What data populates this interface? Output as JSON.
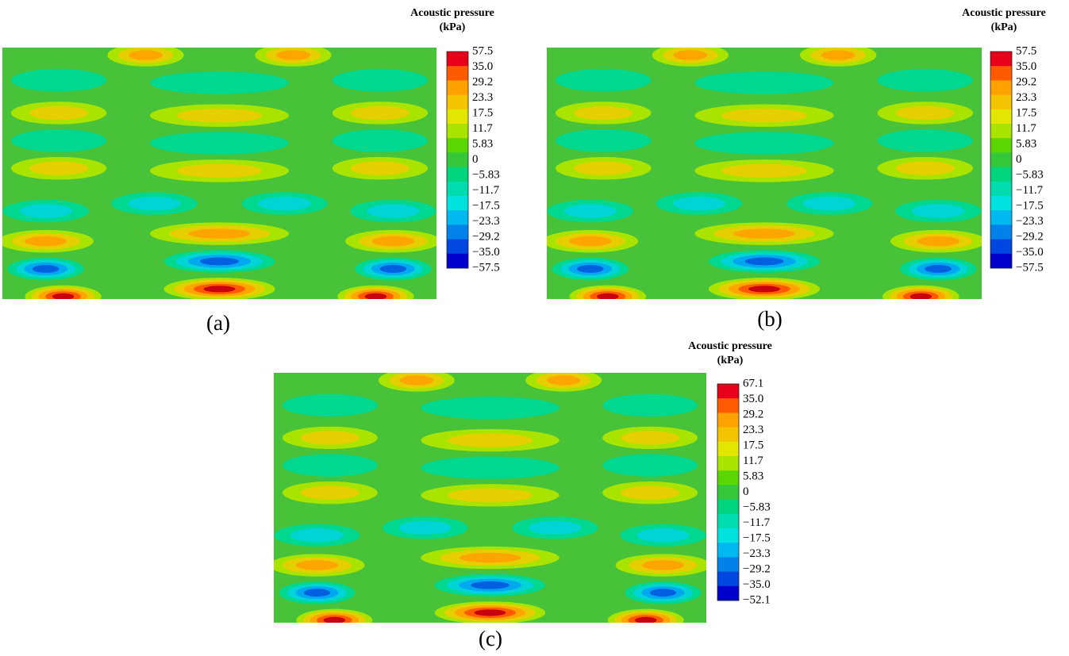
{
  "colormap": [
    "#e8001a",
    "#ff5a00",
    "#ffa200",
    "#f5c400",
    "#e2e600",
    "#a8e400",
    "#5ad600",
    "#34c83a",
    "#00d47c",
    "#00dcb0",
    "#00e2e0",
    "#00b8f0",
    "#0082ea",
    "#0046e0",
    "#0000cc"
  ],
  "panels": [
    {
      "legend": {
        "title": "Acoustic pressure",
        "unit": "(kPa)",
        "labels": [
          "57.5",
          "35.0",
          "29.2",
          "23.3",
          "17.5",
          "11.7",
          "5.83",
          "0",
          "−5.83",
          "−11.7",
          "−17.5",
          "−23.3",
          "−29.2",
          "−35.0",
          "−57.5"
        ]
      },
      "caption": "(a)"
    },
    {
      "legend": {
        "title": "Acoustic pressure",
        "unit": "(kPa)",
        "labels": [
          "57.5",
          "35.0",
          "29.2",
          "23.3",
          "17.5",
          "11.7",
          "5.83",
          "0",
          "−5.83",
          "−11.7",
          "−17.5",
          "−23.3",
          "−29.2",
          "−35.0",
          "−57.5"
        ]
      },
      "caption": "(b)"
    },
    {
      "legend": {
        "title": "Acoustic pressure",
        "unit": "(kPa)",
        "labels": [
          "67.1",
          "35.0",
          "29.2",
          "23.3",
          "17.5",
          "11.7",
          "5.83",
          "0",
          "−5.83",
          "−11.7",
          "−17.5",
          "−23.3",
          "−29.2",
          "−35.0",
          "−52.1"
        ]
      },
      "caption": "(c)"
    }
  ]
}
